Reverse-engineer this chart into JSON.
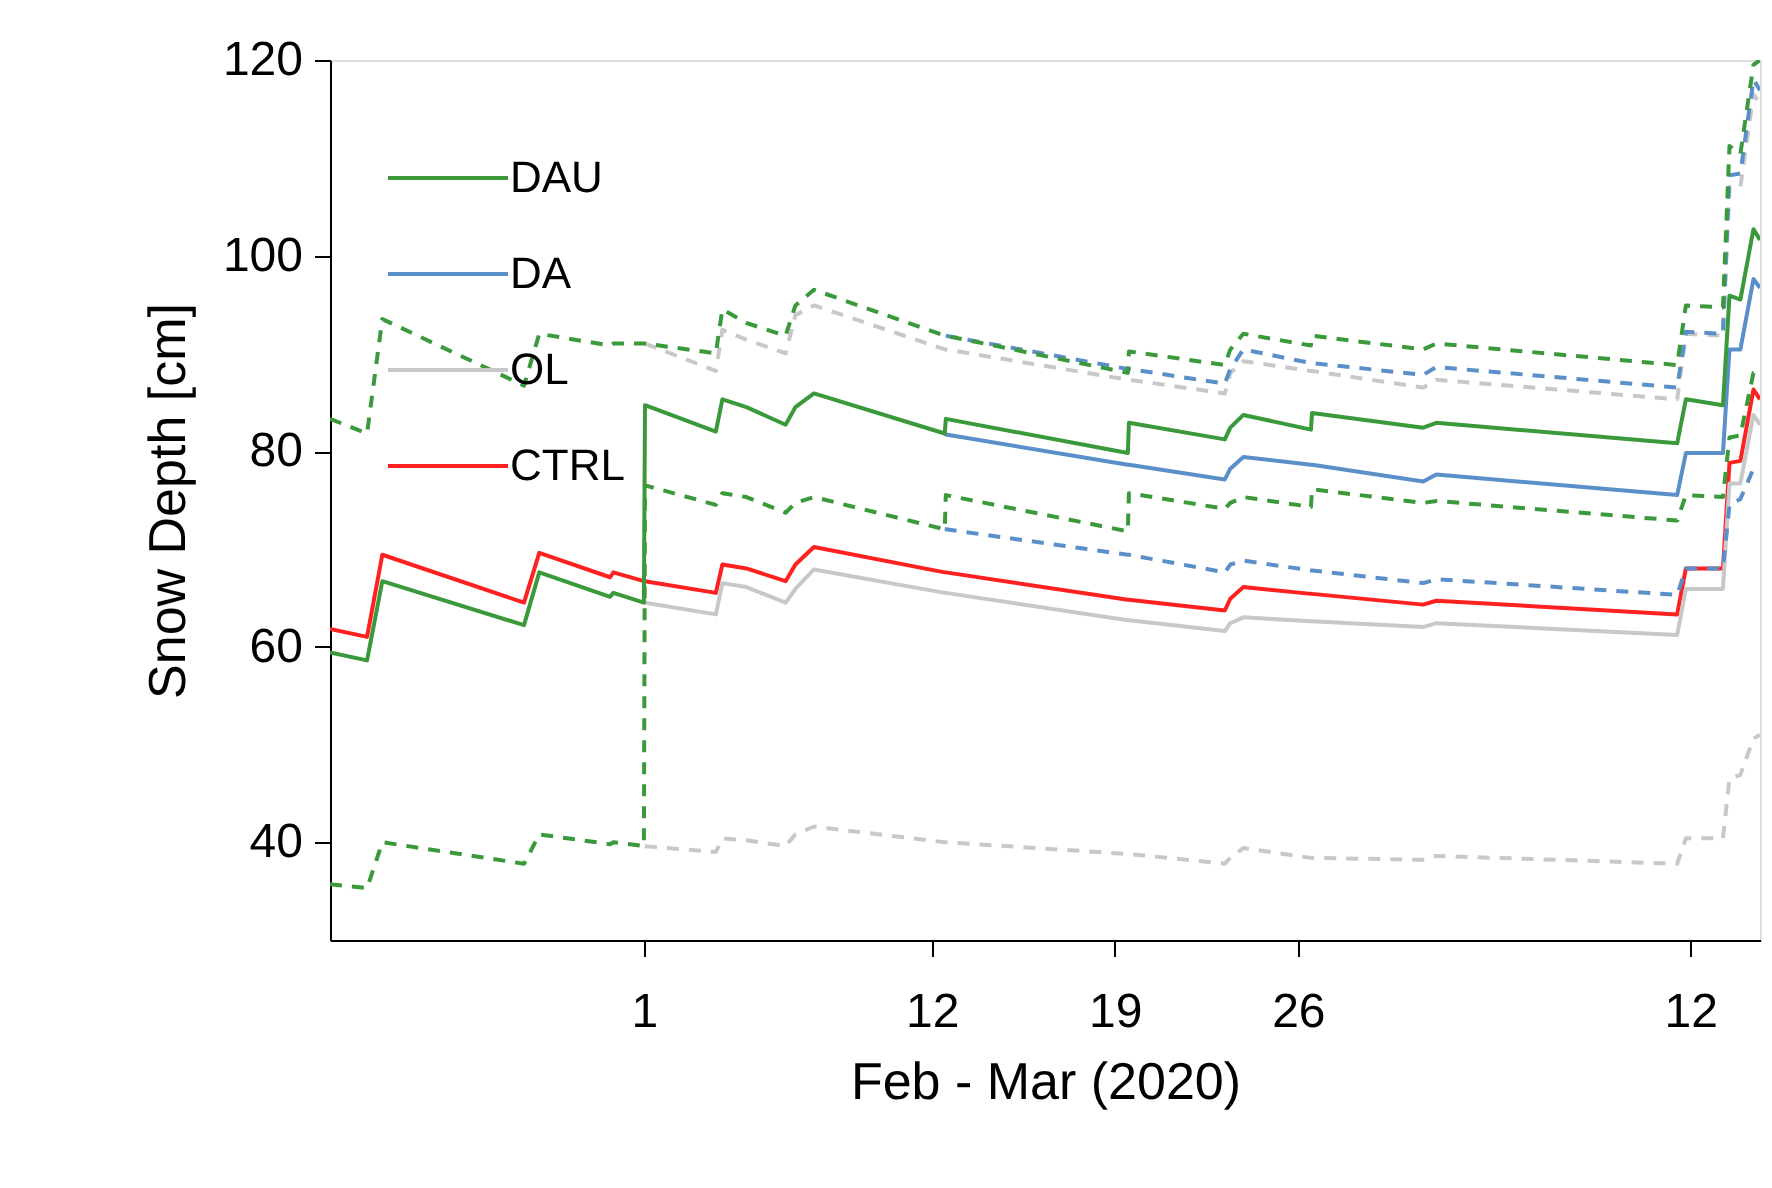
{
  "chart_data": {
    "type": "line",
    "xlabel": "Feb - Mar (2020)",
    "ylabel": "Snow Depth [cm]",
    "x": [
      "2020-01-20",
      "2020-01-21T10:00",
      "2020-01-22",
      "2020-01-27T10:00",
      "2020-01-28",
      "2020-01-30T17:00",
      "2020-01-30T20:00",
      "2020-02-01",
      "2020-02-01T01:00",
      "2020-02-03T18:00",
      "2020-02-04",
      "2020-02-04T22:00",
      "2020-02-06T10:00",
      "2020-02-06T19:00",
      "2020-02-07T12:00",
      "2020-02-12T12:00",
      "2020-02-12T13:00",
      "2020-02-19T12:00",
      "2020-02-19T13:00",
      "2020-02-23T05:00",
      "2020-02-23T10:00",
      "2020-02-23T22:00",
      "2020-02-26T12:00",
      "2020-02-26T13:00",
      "2020-03-01T19:00",
      "2020-03-02T07:00",
      "2020-03-11T12:00",
      "2020-03-11T20:00",
      "2020-03-13T06:00",
      "2020-03-13T12:00",
      "2020-03-13T22:00",
      "2020-03-14T10:00",
      "2020-03-14T16:00"
    ],
    "xlim": [
      "2020-01-20",
      "2020-03-14T16:00"
    ],
    "xticks": [
      {
        "value": "2020-02-01",
        "label": "1"
      },
      {
        "value": "2020-02-12",
        "label": "12"
      },
      {
        "value": "2020-02-19",
        "label": "19"
      },
      {
        "value": "2020-02-26",
        "label": "26"
      },
      {
        "value": "2020-03-12",
        "label": "12"
      }
    ],
    "ylim": [
      30,
      120
    ],
    "yticks": [
      40,
      60,
      80,
      100,
      120
    ],
    "legend": "top left",
    "series": [
      {
        "name": "DAU",
        "color": "#3a993a",
        "line_style": "solid",
        "values": [
          59.4,
          58.6,
          66.7,
          62.2,
          67.6,
          65.1,
          65.5,
          64.5,
          84.7,
          82.0,
          85.3,
          84.5,
          82.7,
          84.5,
          85.9,
          81.8,
          83.3,
          79.8,
          82.9,
          81.2,
          82.4,
          83.7,
          82.2,
          83.9,
          82.4,
          82.9,
          80.8,
          85.3,
          84.7,
          95.9,
          95.5,
          102.7,
          101.6
        ]
      },
      {
        "color": "#3a993a",
        "line_style": "dashed",
        "values": [
          83.3,
          81.8,
          93.5,
          86.7,
          92.0,
          90.8,
          91.0,
          91.0,
          91.0,
          90.0,
          94.5,
          93.1,
          91.8,
          94.9,
          96.5,
          91.8,
          91.8,
          88.0,
          90.2,
          88.8,
          90.4,
          92.0,
          90.8,
          91.8,
          90.4,
          91.0,
          88.8,
          94.9,
          94.7,
          111.2,
          110.4,
          119.5,
          120
        ]
      },
      {
        "color": "#3a993a",
        "line_style": "dashed",
        "values": [
          35.7,
          35.3,
          40.0,
          37.8,
          40.8,
          39.8,
          40.0,
          39.6,
          76.5,
          74.5,
          75.7,
          75.3,
          73.7,
          74.7,
          75.3,
          72.0,
          75.5,
          71.8,
          75.7,
          74.1,
          74.7,
          75.3,
          74.3,
          76.1,
          74.7,
          74.9,
          72.9,
          75.5,
          75.3,
          81.4,
          81.6,
          88.0,
          88.0
        ]
      },
      {
        "name": "DA",
        "color": "#5b8fc9",
        "line_style": "solid",
        "values": [
          null,
          null,
          null,
          null,
          null,
          null,
          null,
          null,
          null,
          null,
          null,
          null,
          null,
          null,
          null,
          81.8,
          81.7,
          78.6,
          78.6,
          77.1,
          78.2,
          79.4,
          78.6,
          78.6,
          76.9,
          77.6,
          75.5,
          79.8,
          79.8,
          90.4,
          90.4,
          97.6,
          96.7
        ]
      },
      {
        "color": "#5b8fc9",
        "line_style": "dashed",
        "values": [
          null,
          null,
          null,
          null,
          null,
          null,
          null,
          null,
          null,
          null,
          null,
          null,
          null,
          null,
          null,
          null,
          91.8,
          88.4,
          88.4,
          86.9,
          88.4,
          90.4,
          89.0,
          89.0,
          87.8,
          88.6,
          86.5,
          92.2,
          92.0,
          108.2,
          108.4,
          118.0,
          116.9
        ]
      },
      {
        "color": "#5b8fc9",
        "line_style": "dashed",
        "values": [
          null,
          null,
          null,
          null,
          null,
          null,
          null,
          null,
          null,
          null,
          null,
          null,
          null,
          null,
          null,
          72.0,
          72.0,
          69.4,
          69.4,
          67.6,
          68.4,
          68.8,
          67.8,
          67.8,
          66.5,
          66.9,
          65.3,
          68.0,
          68.0,
          74.5,
          75.1,
          78.2,
          78.0
        ]
      },
      {
        "name": "OL",
        "color": "#c8c8c8",
        "line_style": "solid",
        "values": [
          null,
          null,
          null,
          null,
          null,
          null,
          null,
          null,
          64.5,
          63.3,
          66.5,
          66.1,
          64.5,
          65.9,
          67.9,
          65.5,
          65.5,
          62.7,
          62.7,
          61.6,
          62.4,
          63.0,
          62.6,
          62.6,
          62.0,
          62.4,
          61.2,
          65.9,
          65.9,
          76.7,
          76.7,
          83.7,
          82.7
        ]
      },
      {
        "color": "#c8c8c8",
        "line_style": "dashed",
        "values": [
          null,
          null,
          null,
          null,
          null,
          null,
          null,
          null,
          91.0,
          88.2,
          92.4,
          91.4,
          90.0,
          93.9,
          94.9,
          90.4,
          90.4,
          87.3,
          87.3,
          85.9,
          88.0,
          89.2,
          88.2,
          88.2,
          86.5,
          87.3,
          85.3,
          92.0,
          91.8,
          107.0,
          107.0,
          116.5,
          115.5
        ]
      },
      {
        "color": "#c8c8c8",
        "line_style": "dashed",
        "values": [
          null,
          null,
          null,
          null,
          null,
          null,
          null,
          null,
          39.6,
          39.0,
          40.4,
          40.2,
          39.6,
          40.8,
          41.6,
          40.0,
          40.0,
          38.8,
          38.8,
          37.8,
          38.4,
          39.4,
          38.4,
          38.4,
          38.2,
          38.6,
          37.8,
          40.4,
          40.4,
          46.5,
          46.9,
          50.6,
          51.0
        ]
      },
      {
        "name": "CTRL",
        "color": "#ff2020",
        "line_style": "solid",
        "values": [
          61.8,
          61.0,
          69.4,
          64.5,
          69.6,
          67.1,
          67.6,
          66.7,
          66.7,
          65.5,
          68.4,
          68.0,
          66.7,
          68.4,
          70.2,
          67.6,
          67.6,
          64.8,
          64.8,
          63.7,
          64.9,
          66.1,
          65.4,
          65.4,
          64.3,
          64.7,
          63.3,
          68.0,
          68.0,
          78.8,
          79.0,
          86.3,
          85.3
        ]
      }
    ]
  }
}
